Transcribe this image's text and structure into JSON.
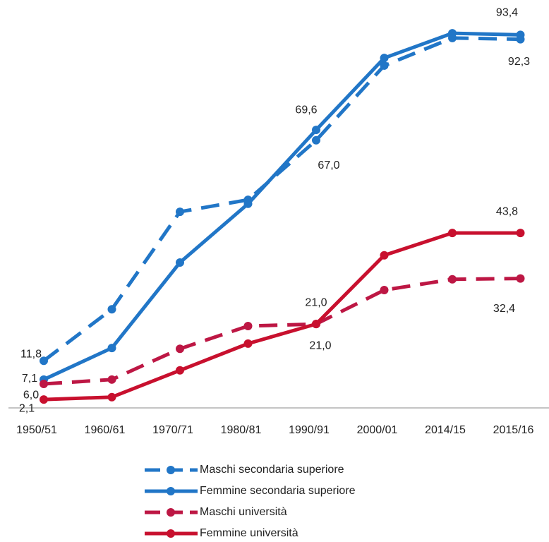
{
  "chart_data": {
    "type": "line",
    "categories": [
      "1950/51",
      "1960/61",
      "1970/71",
      "1980/81",
      "1990/91",
      "2000/01",
      "2014/15",
      "2015/16"
    ],
    "ylim": [
      0,
      100
    ],
    "series": [
      {
        "name": "Maschi secondaria superiore",
        "color": "#2176c7",
        "dash": true,
        "values": [
          11.8,
          24.7,
          49.1,
          52.1,
          67.0,
          85.7,
          92.6,
          92.3
        ],
        "value_labels": [
          "11,8",
          null,
          null,
          null,
          "67,0",
          null,
          null,
          "92,3"
        ]
      },
      {
        "name": "Femmine secondaria superiore",
        "color": "#2176c7",
        "dash": false,
        "values": [
          7.1,
          15.0,
          36.4,
          51.1,
          69.6,
          87.6,
          93.8,
          93.4
        ],
        "value_labels": [
          "7,1",
          null,
          null,
          null,
          "69,6",
          null,
          null,
          "93,4"
        ]
      },
      {
        "name": "Maschi università",
        "color": "#bd1744",
        "dash": true,
        "values": [
          6.0,
          7.1,
          14.8,
          20.5,
          21.0,
          29.5,
          32.2,
          32.4
        ],
        "value_labels": [
          "6,0",
          null,
          null,
          null,
          "21,0",
          null,
          null,
          "32,4"
        ]
      },
      {
        "name": "Femmine università",
        "color": "#c8102e",
        "dash": false,
        "values": [
          2.1,
          2.7,
          9.4,
          16.1,
          21.0,
          38.2,
          43.8,
          43.8
        ],
        "value_labels": [
          "2,1",
          null,
          null,
          null,
          "21,0",
          null,
          null,
          "43,8"
        ]
      }
    ]
  }
}
